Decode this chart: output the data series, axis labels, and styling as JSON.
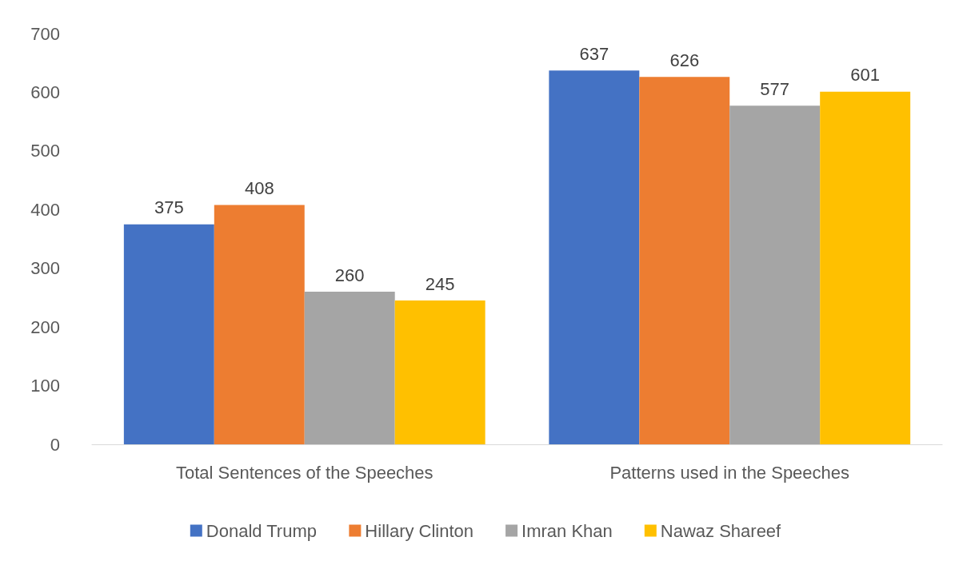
{
  "chart_data": {
    "type": "bar",
    "categories": [
      "Total Sentences of the Speeches",
      "Patterns used in the Speeches"
    ],
    "series": [
      {
        "name": "Donald Trump",
        "color": "#4472c4",
        "values": [
          375,
          637
        ]
      },
      {
        "name": "Hillary Clinton",
        "color": "#ed7d31",
        "values": [
          408,
          626
        ]
      },
      {
        "name": "Imran Khan",
        "color": "#a5a5a5",
        "values": [
          260,
          577
        ]
      },
      {
        "name": "Nawaz Shareef",
        "color": "#ffc000",
        "values": [
          245,
          601
        ]
      }
    ],
    "ylim": [
      0,
      700
    ],
    "yticks": [
      0,
      100,
      200,
      300,
      400,
      500,
      600,
      700
    ],
    "grid": false,
    "legend": "bottom",
    "data_labels": true
  }
}
